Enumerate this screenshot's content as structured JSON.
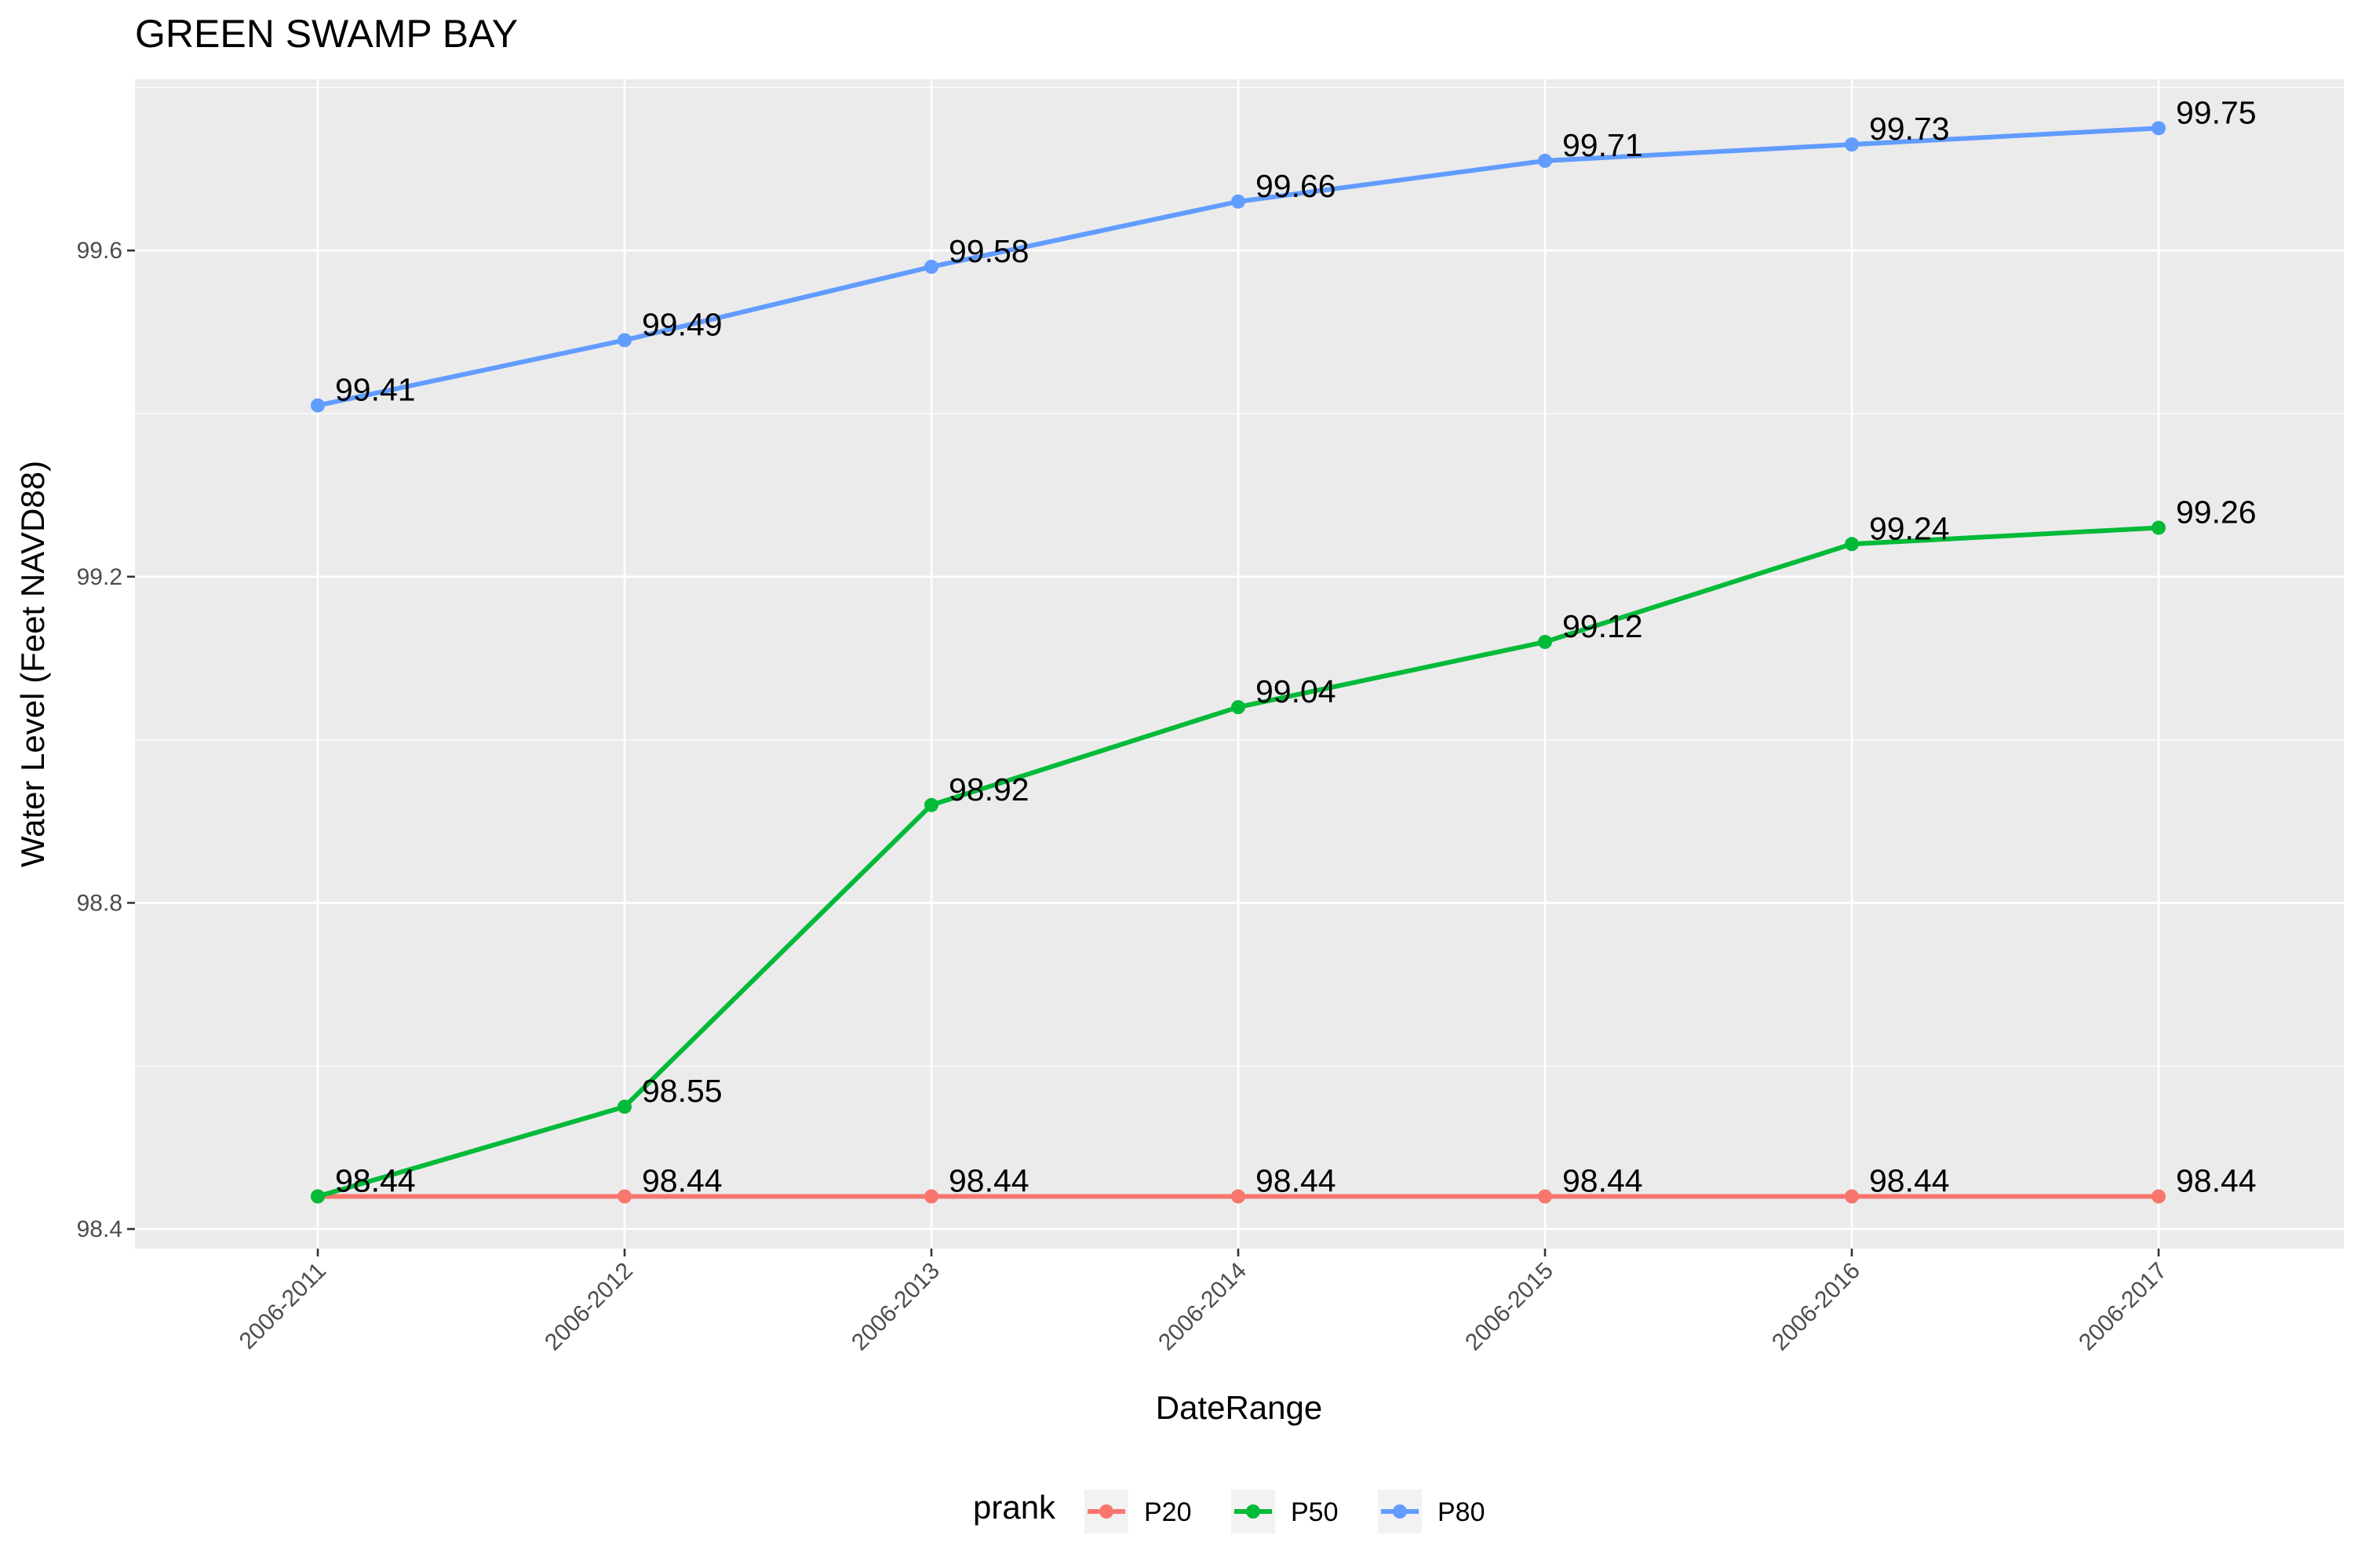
{
  "chart_data": {
    "type": "line",
    "title": "GREEN SWAMP BAY",
    "xlabel": "DateRange",
    "ylabel": "Water Level (Feet NAVD88)",
    "categories": [
      "2006-2011",
      "2006-2012",
      "2006-2013",
      "2006-2014",
      "2006-2015",
      "2006-2016",
      "2006-2017"
    ],
    "ylim": [
      98.376,
      99.81
    ],
    "yticks": [
      98.4,
      98.8,
      99.2,
      99.6
    ],
    "ytick_labels": [
      "98.4",
      "98.8",
      "99.2",
      "99.6"
    ],
    "grid": true,
    "legend": {
      "title": "prank",
      "position": "bottom"
    },
    "series": [
      {
        "name": "P20",
        "color": "#F8766D",
        "values": [
          98.44,
          98.44,
          98.44,
          98.44,
          98.44,
          98.44,
          98.44
        ],
        "labels": [
          "98.44",
          "98.44",
          "98.44",
          "98.44",
          "98.44",
          "98.44",
          "98.44"
        ]
      },
      {
        "name": "P50",
        "color": "#00BA38",
        "values": [
          98.44,
          98.55,
          98.92,
          99.04,
          99.12,
          99.24,
          99.26
        ],
        "labels": [
          "98.44",
          "98.55",
          "98.92",
          "99.04",
          "99.12",
          "99.24",
          "99.26"
        ]
      },
      {
        "name": "P80",
        "color": "#619CFF",
        "values": [
          99.41,
          99.49,
          99.58,
          99.66,
          99.71,
          99.73,
          99.75
        ],
        "labels": [
          "99.41",
          "99.49",
          "99.58",
          "99.66",
          "99.71",
          "99.73",
          "99.75"
        ]
      }
    ]
  }
}
